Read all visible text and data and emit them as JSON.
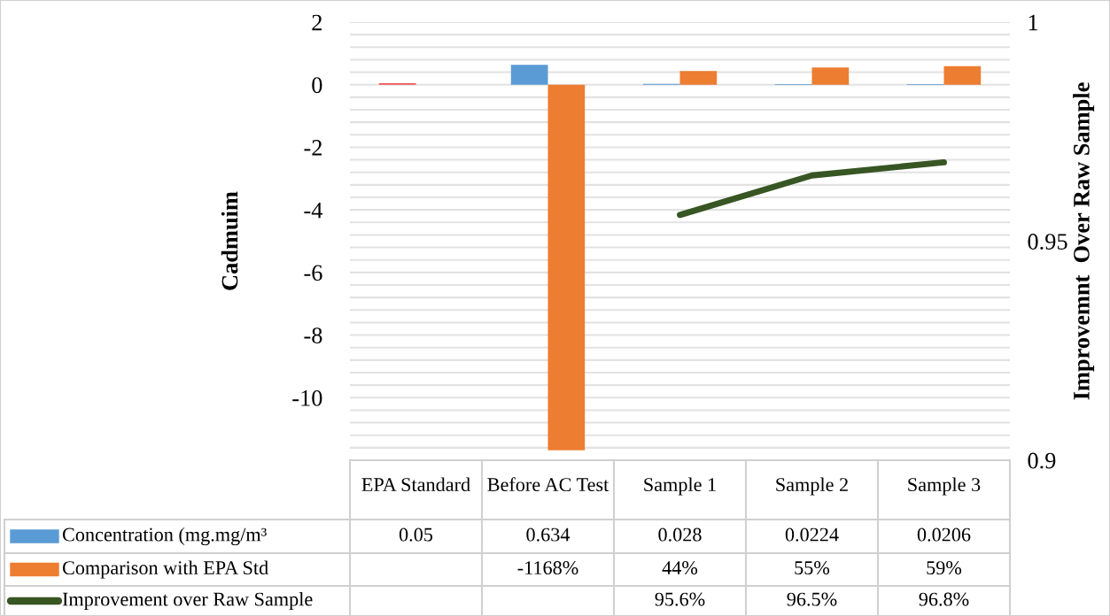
{
  "chart_data": {
    "type": "bar",
    "categories": [
      "EPA Standard",
      "Before AC Test",
      "Sample 1",
      "Sample 2",
      "Sample 3"
    ],
    "ylabel": "Cadmuim",
    "y2label": "Improvemnt  Over Raw Sample",
    "ylim": [
      -12,
      2
    ],
    "yticks": [
      {
        "value": -12,
        "label": null
      },
      {
        "value": -11.6,
        "label": null
      },
      {
        "value": -11.2,
        "label": null
      },
      {
        "value": -10.8,
        "label": null
      },
      {
        "value": -10.4,
        "label": null
      },
      -10,
      {
        "value": -9.6,
        "label": null
      },
      {
        "value": -9.2,
        "label": null
      },
      {
        "value": -8.8,
        "label": null
      },
      {
        "value": -8.4,
        "label": null
      },
      -8,
      {
        "value": -7.6,
        "label": null
      },
      {
        "value": -7.2,
        "label": null
      },
      {
        "value": -6.8,
        "label": null
      },
      {
        "value": -6.4,
        "label": null
      },
      -6,
      {
        "value": -5.6,
        "label": null
      },
      {
        "value": -5.2,
        "label": null
      },
      {
        "value": -4.8,
        "label": null
      },
      {
        "value": -4.4,
        "label": null
      },
      -4,
      {
        "value": -3.6,
        "label": null
      },
      {
        "value": -3.2,
        "label": null
      },
      {
        "value": -2.8,
        "label": null
      },
      {
        "value": -2.4,
        "label": null
      },
      -2,
      {
        "value": -1.6,
        "label": null
      },
      {
        "value": -1.2,
        "label": null
      },
      {
        "value": -0.8,
        "label": null
      },
      {
        "value": -0.4,
        "label": null
      },
      0,
      {
        "value": 0.4,
        "label": null
      },
      {
        "value": 0.8,
        "label": null
      },
      {
        "value": 1.2,
        "label": null
      },
      {
        "value": 1.6,
        "label": null
      },
      2
    ],
    "y2lim": [
      0.9,
      1
    ],
    "y2ticks": [
      0.9,
      0.95,
      1
    ],
    "grid": "y",
    "legend": "bottom",
    "series": [
      {
        "name": "Concentration (mg.mg/m³",
        "color": "#5b9bd5",
        "colors": [
          "#f05454",
          "#5b9bd5",
          "#5b9bd5",
          "#5b9bd5",
          "#5b9bd5"
        ],
        "values": [
          0.05,
          0.634,
          0.028,
          0.0224,
          0.0206
        ],
        "value_labels": [
          "0.05",
          "0.634",
          "0.028",
          "0.0224",
          "0.0206"
        ]
      },
      {
        "name": "Comparison with EPA Std",
        "color": "#ed7d31",
        "values": [
          null,
          -11.68,
          0.44,
          0.55,
          0.59
        ],
        "value_labels": [
          null,
          "-1168%",
          "44%",
          "55%",
          "59%"
        ]
      },
      {
        "name": "Improvement over Raw Sample",
        "type": "line",
        "axis": "y2",
        "color": "#375623",
        "values": [
          null,
          null,
          0.956,
          0.965,
          0.968
        ],
        "value_labels": [
          null,
          null,
          "95.6%",
          "96.5%",
          "96.8%"
        ]
      }
    ]
  }
}
